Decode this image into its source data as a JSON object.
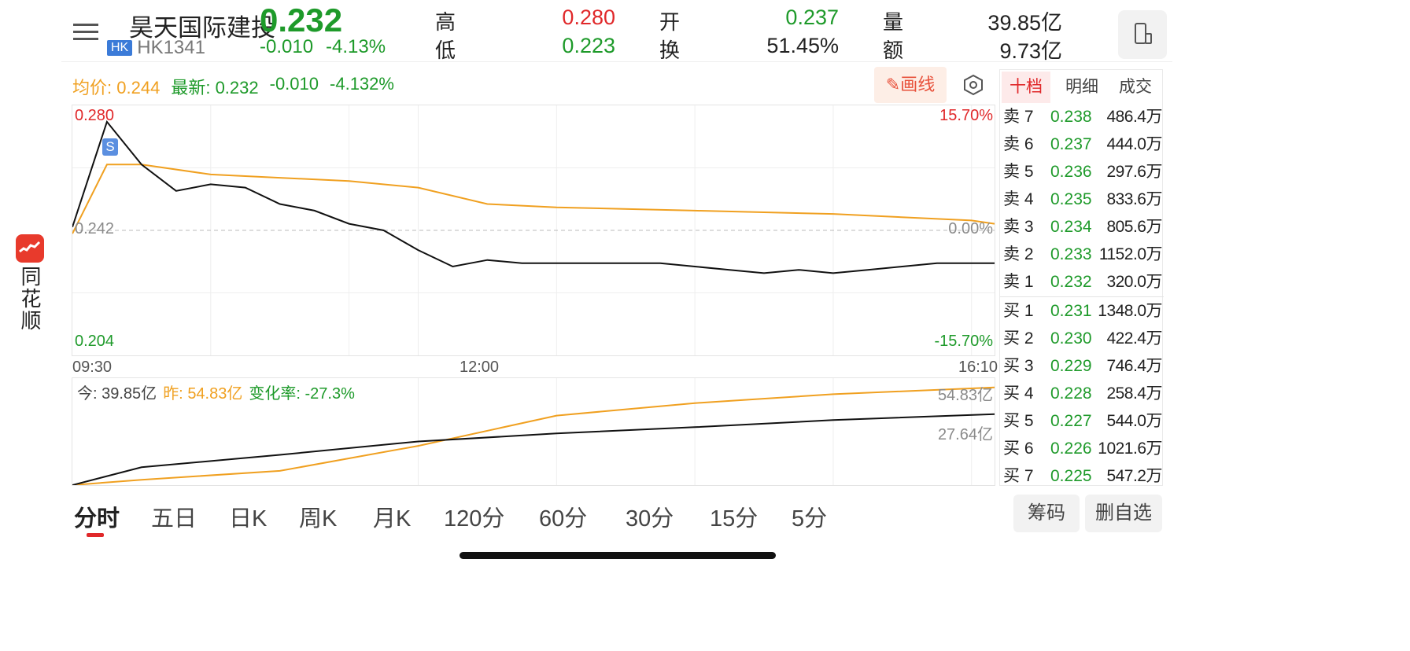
{
  "stock": {
    "name": "昊天国际建投",
    "market": "HK",
    "code": "HK1341",
    "price": "0.232",
    "change": "-0.010",
    "change_pct": "-4.13%"
  },
  "quote": {
    "high_label": "高",
    "high": "0.280",
    "low_label": "低",
    "low": "0.223",
    "open_label": "开",
    "open": "0.237",
    "turnover_label": "换",
    "turnover": "51.45%",
    "volume_label": "量",
    "volume": "39.85亿",
    "amount_label": "额",
    "amount": "9.73亿"
  },
  "logo": {
    "text": "同花顺",
    "icon": "tonghuashun-logo-icon"
  },
  "chart_info": {
    "avg_label": "均价:",
    "avg": "0.244",
    "latest_label": "最新:",
    "latest": "0.232",
    "change": "-0.010",
    "change_pct": "-4.132%",
    "draw_button": "画线",
    "draw_icon": "pencil-icon",
    "settings_icon": "hexagon-settings-icon"
  },
  "price_axis": {
    "top": "0.280",
    "mid": "0.242",
    "bottom": "0.204",
    "top_pct": "15.70%",
    "mid_pct": "0.00%",
    "bottom_pct": "-15.70%"
  },
  "time_axis": {
    "start": "09:30",
    "mid": "12:00",
    "end": "16:10"
  },
  "marker": {
    "label": "S"
  },
  "volume_info": {
    "today_label": "今:",
    "today": "39.85亿",
    "yest_label": "昨:",
    "yest": "54.83亿",
    "rate_label": "变化率:",
    "rate": "-27.3%",
    "right_top": "54.83亿",
    "right_mid": "27.64亿"
  },
  "order_book": {
    "tabs": [
      "十档",
      "明细",
      "成交"
    ],
    "active_tab": 0,
    "asks": [
      {
        "label": "卖 7",
        "price": "0.238",
        "vol": "486.4万"
      },
      {
        "label": "卖 6",
        "price": "0.237",
        "vol": "444.0万"
      },
      {
        "label": "卖 5",
        "price": "0.236",
        "vol": "297.6万"
      },
      {
        "label": "卖 4",
        "price": "0.235",
        "vol": "833.6万"
      },
      {
        "label": "卖 3",
        "price": "0.234",
        "vol": "805.6万"
      },
      {
        "label": "卖 2",
        "price": "0.233",
        "vol": "1152.0万"
      },
      {
        "label": "卖 1",
        "price": "0.232",
        "vol": "320.0万"
      }
    ],
    "bids": [
      {
        "label": "买 1",
        "price": "0.231",
        "vol": "1348.0万"
      },
      {
        "label": "买 2",
        "price": "0.230",
        "vol": "422.4万"
      },
      {
        "label": "买 3",
        "price": "0.229",
        "vol": "746.4万"
      },
      {
        "label": "买 4",
        "price": "0.228",
        "vol": "258.4万"
      },
      {
        "label": "买 5",
        "price": "0.227",
        "vol": "544.0万"
      },
      {
        "label": "买 6",
        "price": "0.226",
        "vol": "1021.6万"
      },
      {
        "label": "买 7",
        "price": "0.225",
        "vol": "547.2万"
      }
    ]
  },
  "period_tabs": [
    "分时",
    "五日",
    "日K",
    "周K",
    "月K",
    "120分",
    "60分",
    "30分",
    "15分",
    "5分"
  ],
  "active_period": 0,
  "buttons": {
    "chips": "筹码",
    "remove_watch": "删自选"
  },
  "colors": {
    "up": "#e0282a",
    "down": "#1e9a2a",
    "avg_line": "#f0a020",
    "price_line": "#111111",
    "accent": "#e0282a"
  },
  "chart_data": {
    "type": "line",
    "title": "",
    "price_series": {
      "name": "最新",
      "x": [
        "09:30",
        "09:45",
        "10:00",
        "10:15",
        "10:30",
        "10:45",
        "11:00",
        "11:15",
        "11:30",
        "11:45",
        "12:00",
        "12:15",
        "12:30",
        "12:45",
        "13:00",
        "13:15",
        "13:30",
        "13:45",
        "14:00",
        "14:15",
        "14:30",
        "14:45",
        "15:00",
        "15:15",
        "15:30",
        "15:45",
        "16:00",
        "16:10"
      ],
      "values": [
        0.243,
        0.275,
        0.262,
        0.254,
        0.256,
        0.255,
        0.25,
        0.248,
        0.244,
        0.242,
        0.236,
        0.231,
        0.233,
        0.232,
        0.232,
        0.232,
        0.232,
        0.232,
        0.231,
        0.23,
        0.229,
        0.23,
        0.229,
        0.23,
        0.231,
        0.232,
        0.232,
        0.232
      ]
    },
    "avg_series": {
      "name": "均价",
      "x": [
        "09:30",
        "09:45",
        "10:00",
        "10:30",
        "11:00",
        "11:30",
        "12:00",
        "12:30",
        "13:00",
        "14:00",
        "15:00",
        "16:00",
        "16:10"
      ],
      "values": [
        0.241,
        0.262,
        0.262,
        0.259,
        0.258,
        0.257,
        0.255,
        0.25,
        0.249,
        0.248,
        0.247,
        0.245,
        0.244
      ]
    },
    "ylim": [
      0.204,
      0.28
    ],
    "volume_series": [
      {
        "name": "今",
        "x": [
          "09:30",
          "10:00",
          "11:00",
          "12:00",
          "13:00",
          "14:00",
          "15:00",
          "16:10"
        ],
        "values": [
          0,
          10.0,
          17.0,
          24.5,
          29.0,
          32.5,
          36.5,
          39.85
        ]
      },
      {
        "name": "昨",
        "x": [
          "09:30",
          "10:00",
          "11:00",
          "12:00",
          "13:00",
          "14:00",
          "15:00",
          "16:10"
        ],
        "values": [
          0,
          3.0,
          8.0,
          22.0,
          39.0,
          46.0,
          51.0,
          54.83
        ]
      }
    ]
  }
}
